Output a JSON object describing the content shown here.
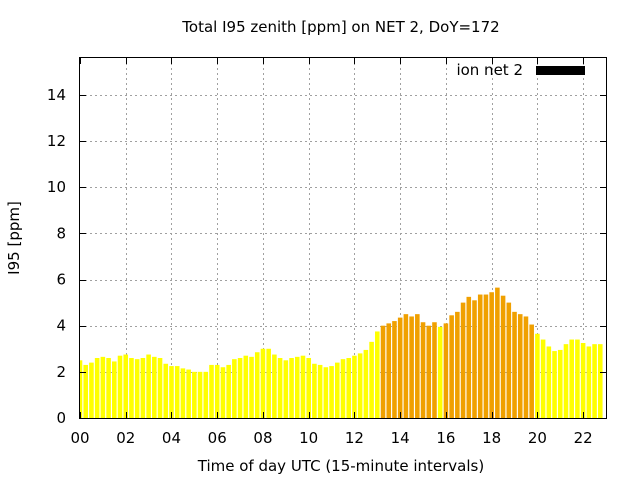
{
  "chart_data": {
    "type": "bar",
    "title": "Total I95 zenith [ppm] on NET 2, DoY=172",
    "xlabel": "Time of day UTC (15-minute intervals)",
    "ylabel": "I95 [ppm]",
    "xlim": [
      0,
      23
    ],
    "ylim": [
      0,
      15.6
    ],
    "grid": true,
    "legend": {
      "position": "top-right",
      "entries": [
        {
          "name": "ion net 2",
          "color": "#000000"
        }
      ]
    },
    "x_ticks": [
      {
        "v": 0,
        "label": "00"
      },
      {
        "v": 2,
        "label": "02"
      },
      {
        "v": 4,
        "label": "04"
      },
      {
        "v": 6,
        "label": "06"
      },
      {
        "v": 8,
        "label": "08"
      },
      {
        "v": 10,
        "label": "10"
      },
      {
        "v": 12,
        "label": "12"
      },
      {
        "v": 14,
        "label": "14"
      },
      {
        "v": 16,
        "label": "16"
      },
      {
        "v": 18,
        "label": "18"
      },
      {
        "v": 20,
        "label": "20"
      },
      {
        "v": 22,
        "label": "22"
      }
    ],
    "y_ticks": [
      {
        "v": 0,
        "label": "0"
      },
      {
        "v": 2,
        "label": "2"
      },
      {
        "v": 4,
        "label": "4"
      },
      {
        "v": 6,
        "label": "6"
      },
      {
        "v": 8,
        "label": "8"
      },
      {
        "v": 10,
        "label": "10"
      },
      {
        "v": 12,
        "label": "12"
      },
      {
        "v": 14,
        "label": "14"
      }
    ],
    "colors": {
      "low": "#ffff00",
      "high": "#f0a000"
    },
    "bar_width_hours": 0.2,
    "bars": [
      {
        "x": 0.0,
        "y": 2.5,
        "c": "low"
      },
      {
        "x": 0.25,
        "y": 2.3,
        "c": "low"
      },
      {
        "x": 0.5,
        "y": 2.4,
        "c": "low"
      },
      {
        "x": 0.75,
        "y": 2.6,
        "c": "low"
      },
      {
        "x": 1.0,
        "y": 2.65,
        "c": "low"
      },
      {
        "x": 1.25,
        "y": 2.6,
        "c": "low"
      },
      {
        "x": 1.5,
        "y": 2.45,
        "c": "low"
      },
      {
        "x": 1.75,
        "y": 2.7,
        "c": "low"
      },
      {
        "x": 2.0,
        "y": 2.75,
        "c": "low"
      },
      {
        "x": 2.25,
        "y": 2.6,
        "c": "low"
      },
      {
        "x": 2.5,
        "y": 2.55,
        "c": "low"
      },
      {
        "x": 2.75,
        "y": 2.6,
        "c": "low"
      },
      {
        "x": 3.0,
        "y": 2.75,
        "c": "low"
      },
      {
        "x": 3.25,
        "y": 2.65,
        "c": "low"
      },
      {
        "x": 3.5,
        "y": 2.6,
        "c": "low"
      },
      {
        "x": 3.75,
        "y": 2.35,
        "c": "low"
      },
      {
        "x": 4.0,
        "y": 2.25,
        "c": "low"
      },
      {
        "x": 4.25,
        "y": 2.25,
        "c": "low"
      },
      {
        "x": 4.5,
        "y": 2.15,
        "c": "low"
      },
      {
        "x": 4.75,
        "y": 2.1,
        "c": "low"
      },
      {
        "x": 5.0,
        "y": 2.0,
        "c": "low"
      },
      {
        "x": 5.25,
        "y": 2.0,
        "c": "low"
      },
      {
        "x": 5.5,
        "y": 2.0,
        "c": "low"
      },
      {
        "x": 5.75,
        "y": 2.3,
        "c": "low"
      },
      {
        "x": 6.0,
        "y": 2.3,
        "c": "low"
      },
      {
        "x": 6.25,
        "y": 2.2,
        "c": "low"
      },
      {
        "x": 6.5,
        "y": 2.3,
        "c": "low"
      },
      {
        "x": 6.75,
        "y": 2.55,
        "c": "low"
      },
      {
        "x": 7.0,
        "y": 2.6,
        "c": "low"
      },
      {
        "x": 7.25,
        "y": 2.7,
        "c": "low"
      },
      {
        "x": 7.5,
        "y": 2.65,
        "c": "low"
      },
      {
        "x": 7.75,
        "y": 2.85,
        "c": "low"
      },
      {
        "x": 8.0,
        "y": 3.0,
        "c": "low"
      },
      {
        "x": 8.25,
        "y": 3.0,
        "c": "low"
      },
      {
        "x": 8.5,
        "y": 2.75,
        "c": "low"
      },
      {
        "x": 8.75,
        "y": 2.6,
        "c": "low"
      },
      {
        "x": 9.0,
        "y": 2.5,
        "c": "low"
      },
      {
        "x": 9.25,
        "y": 2.6,
        "c": "low"
      },
      {
        "x": 9.5,
        "y": 2.65,
        "c": "low"
      },
      {
        "x": 9.75,
        "y": 2.7,
        "c": "low"
      },
      {
        "x": 10.0,
        "y": 2.6,
        "c": "low"
      },
      {
        "x": 10.25,
        "y": 2.35,
        "c": "low"
      },
      {
        "x": 10.5,
        "y": 2.3,
        "c": "low"
      },
      {
        "x": 10.75,
        "y": 2.2,
        "c": "low"
      },
      {
        "x": 11.0,
        "y": 2.25,
        "c": "low"
      },
      {
        "x": 11.25,
        "y": 2.4,
        "c": "low"
      },
      {
        "x": 11.5,
        "y": 2.55,
        "c": "low"
      },
      {
        "x": 11.75,
        "y": 2.6,
        "c": "low"
      },
      {
        "x": 12.0,
        "y": 2.7,
        "c": "low"
      },
      {
        "x": 12.25,
        "y": 2.8,
        "c": "low"
      },
      {
        "x": 12.5,
        "y": 2.95,
        "c": "low"
      },
      {
        "x": 12.75,
        "y": 3.3,
        "c": "low"
      },
      {
        "x": 13.0,
        "y": 3.75,
        "c": "low"
      },
      {
        "x": 13.25,
        "y": 4.0,
        "c": "high"
      },
      {
        "x": 13.5,
        "y": 4.1,
        "c": "high"
      },
      {
        "x": 13.75,
        "y": 4.2,
        "c": "high"
      },
      {
        "x": 14.0,
        "y": 4.35,
        "c": "high"
      },
      {
        "x": 14.25,
        "y": 4.5,
        "c": "high"
      },
      {
        "x": 14.5,
        "y": 4.4,
        "c": "high"
      },
      {
        "x": 14.75,
        "y": 4.5,
        "c": "high"
      },
      {
        "x": 15.0,
        "y": 4.15,
        "c": "high"
      },
      {
        "x": 15.25,
        "y": 4.0,
        "c": "high"
      },
      {
        "x": 15.5,
        "y": 4.15,
        "c": "high"
      },
      {
        "x": 15.75,
        "y": 3.95,
        "c": "low"
      },
      {
        "x": 16.0,
        "y": 4.1,
        "c": "high"
      },
      {
        "x": 16.25,
        "y": 4.45,
        "c": "high"
      },
      {
        "x": 16.5,
        "y": 4.6,
        "c": "high"
      },
      {
        "x": 16.75,
        "y": 5.0,
        "c": "high"
      },
      {
        "x": 17.0,
        "y": 5.25,
        "c": "high"
      },
      {
        "x": 17.25,
        "y": 5.1,
        "c": "high"
      },
      {
        "x": 17.5,
        "y": 5.35,
        "c": "high"
      },
      {
        "x": 17.75,
        "y": 5.35,
        "c": "high"
      },
      {
        "x": 18.0,
        "y": 5.45,
        "c": "high"
      },
      {
        "x": 18.25,
        "y": 5.65,
        "c": "high"
      },
      {
        "x": 18.5,
        "y": 5.3,
        "c": "high"
      },
      {
        "x": 18.75,
        "y": 5.0,
        "c": "high"
      },
      {
        "x": 19.0,
        "y": 4.6,
        "c": "high"
      },
      {
        "x": 19.25,
        "y": 4.5,
        "c": "high"
      },
      {
        "x": 19.5,
        "y": 4.4,
        "c": "high"
      },
      {
        "x": 19.75,
        "y": 4.05,
        "c": "high"
      },
      {
        "x": 20.0,
        "y": 3.65,
        "c": "low"
      },
      {
        "x": 20.25,
        "y": 3.4,
        "c": "low"
      },
      {
        "x": 20.5,
        "y": 3.1,
        "c": "low"
      },
      {
        "x": 20.75,
        "y": 2.9,
        "c": "low"
      },
      {
        "x": 21.0,
        "y": 2.95,
        "c": "low"
      },
      {
        "x": 21.25,
        "y": 3.2,
        "c": "low"
      },
      {
        "x": 21.5,
        "y": 3.4,
        "c": "low"
      },
      {
        "x": 21.75,
        "y": 3.4,
        "c": "low"
      },
      {
        "x": 22.0,
        "y": 3.25,
        "c": "low"
      },
      {
        "x": 22.25,
        "y": 3.1,
        "c": "low"
      },
      {
        "x": 22.5,
        "y": 3.2,
        "c": "low"
      },
      {
        "x": 22.75,
        "y": 3.2,
        "c": "low"
      }
    ]
  }
}
